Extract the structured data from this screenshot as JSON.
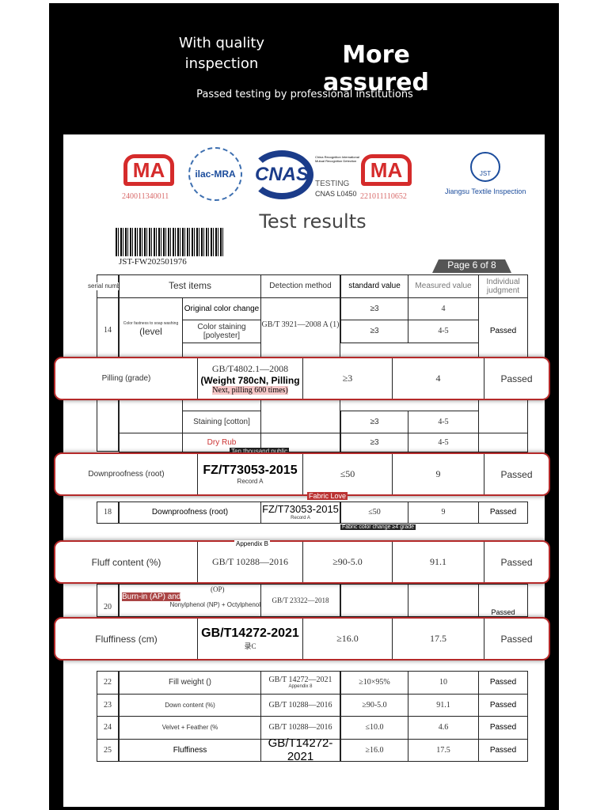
{
  "banner": {
    "left_title": "With quality inspection",
    "right_title": "More assured",
    "subtitle": "Passed testing by professional institutions"
  },
  "logos": {
    "ma_text": "MA",
    "ma1_number": "240011340011",
    "ilac": "ilac-MRA",
    "cnas": "CNAS",
    "cnas_small": "China Recognition International Mutual Recognition Detection",
    "cnas_testing": "TESTING",
    "cnas_code": "CNAS L0450",
    "ma2_number": "221011110652",
    "jst_abbr": "JST",
    "jst_name": "Jiangsu Textile Inspection"
  },
  "doc": {
    "title": "Test results",
    "barcode_id": "JST-FW202501976",
    "page": "Page 6 of 8"
  },
  "table": {
    "headers": {
      "serial": "serial number",
      "items": "Test items",
      "method": "Detection method",
      "standard": "standard value",
      "measured": "Measured value",
      "judgment": "Individual judgment"
    },
    "row14": {
      "serial": "14",
      "item": "Color fastness to soap washing",
      "item_unit": "(level",
      "subs": [
        {
          "name": "Original color change",
          "std": "≥3",
          "val": "4"
        },
        {
          "name": "Color staining [polyester]",
          "std": "≥3",
          "val": "4-5"
        },
        {
          "name": "Staining [cotton]",
          "std": "≥3",
          "val": "4-5"
        }
      ],
      "method": "GB/T 3921—2008 A (1)",
      "judgment": "Passed"
    },
    "row_rub": {
      "name": "Dry Rub",
      "std": "≥3",
      "val": "4-5"
    },
    "row18": {
      "serial": "18",
      "item": "Downproofness (root)",
      "method": "FZ/T73053-2015",
      "method_note": "Record A",
      "std": "≤50",
      "val": "9",
      "judgment": "Passed"
    },
    "row20": {
      "serial": "20",
      "item": "Burn-in (AP) and",
      "sub": "Nonylphenol (NP) + Octylphenol",
      "method": "GB/T 23322—2018",
      "op": "(OP)",
      "judgment": "Passed"
    },
    "rows": [
      {
        "serial": "22",
        "item": "Fill weight ()",
        "method": "GB/T 14272—2021",
        "method_note": "Appendix 8",
        "std": "≥10×95%",
        "val": "10",
        "judgment": "Passed"
      },
      {
        "serial": "23",
        "item": "Down content (%)",
        "method": "GB/T 10288—2016",
        "std": "≥90-5.0",
        "val": "91.1",
        "judgment": "Passed"
      },
      {
        "serial": "24",
        "item": "Velvet + Feather (%",
        "method": "GB/T 10288—2016",
        "std": "≤10.0",
        "val": "4.6",
        "judgment": "Passed"
      },
      {
        "serial": "25",
        "item": "Fluffiness",
        "method": "GB/T14272-2021",
        "std": "≥16.0",
        "val": "17.5",
        "judgment": "Passed"
      }
    ]
  },
  "labels": {
    "ten_thousand": "Ten thousand public",
    "fabric_love": "Fabric Love",
    "fabric_color": "Fabric color change ≥4 grade",
    "appendix_b": "Appendix B"
  },
  "highlights": [
    {
      "item": "Pilling (grade)",
      "method": "GB/T4802.1—2008",
      "method2": "(Weight 780cN, Pilling",
      "method3": "Next, pilling 600 times)",
      "std": "≥3",
      "val": "4",
      "judgment": "Passed"
    },
    {
      "item": "Downproofness (root)",
      "method": "FZ/T73053-2015",
      "method2": "Record A",
      "std": "≤50",
      "val": "9",
      "judgment": "Passed"
    },
    {
      "item": "Fluff content (%)",
      "method": "GB/T 10288—2016",
      "std": "≥90-5.0",
      "val": "91.1",
      "judgment": "Passed"
    },
    {
      "item": "Fluffiness (cm)",
      "method": "GB/T14272-2021",
      "method2": "录C",
      "std": "≥16.0",
      "val": "17.5",
      "judgment": "Passed"
    }
  ]
}
